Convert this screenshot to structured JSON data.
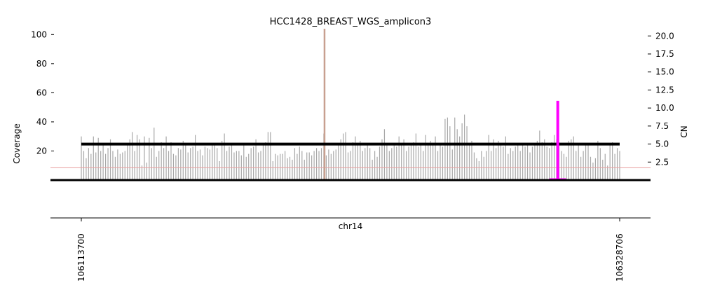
{
  "chart_data": {
    "type": "bar",
    "title": "HCC1428_BREAST_WGS_amplicon3",
    "ylabel": "Coverage",
    "y2label": "CN",
    "xlabel": "chr14",
    "ylim": [
      0,
      104
    ],
    "y2lim": [
      0,
      21.0
    ],
    "xlim": [
      106113700,
      106328706
    ],
    "y_ticks": [
      "20",
      "40",
      "60",
      "80",
      "100"
    ],
    "y2_ticks": [
      "2.5",
      "5.0",
      "7.5",
      "10.0",
      "12.5",
      "15.0",
      "17.5",
      "20.0"
    ],
    "x_ticks": [
      "106113700",
      "106328706"
    ],
    "colors": {
      "coverage": "#a8a8a8",
      "segment": "#000000",
      "baseline": "#e8a0a0",
      "spike": "#c8a090",
      "highlight": "#ff00ff"
    },
    "coverage": [
      30,
      20,
      15,
      22,
      18,
      30,
      19,
      29,
      20,
      24,
      18,
      22,
      28,
      20,
      16,
      21,
      18,
      19,
      20,
      25,
      28,
      33,
      20,
      31,
      28,
      10,
      30,
      12,
      29,
      22,
      36,
      16,
      20,
      26,
      22,
      30,
      20,
      26,
      18,
      17,
      22,
      21,
      27,
      25,
      19,
      22,
      23,
      31,
      20,
      21,
      17,
      23,
      22,
      21,
      25,
      24,
      22,
      13,
      27,
      32,
      20,
      23,
      25,
      19,
      20,
      20,
      17,
      25,
      16,
      18,
      22,
      23,
      28,
      19,
      20,
      25,
      26,
      33,
      33,
      13,
      18,
      17,
      18,
      18,
      20,
      15,
      16,
      14,
      22,
      18,
      23,
      20,
      14,
      19,
      19,
      17,
      20,
      22,
      20,
      22,
      32,
      17,
      21,
      18,
      20,
      21,
      24,
      28,
      32,
      33,
      19,
      20,
      26,
      30,
      24,
      27,
      20,
      22,
      24,
      22,
      14,
      20,
      16,
      23,
      28,
      35,
      24,
      20,
      22,
      25,
      23,
      30,
      24,
      28,
      20,
      23,
      25,
      26,
      32,
      23,
      25,
      20,
      31,
      24,
      27,
      24,
      30,
      20,
      24,
      23,
      42,
      43,
      37,
      21,
      43,
      35,
      30,
      39,
      45,
      37,
      24,
      27,
      19,
      15,
      13,
      20,
      16,
      20,
      31,
      20,
      28,
      22,
      27,
      25,
      23,
      30,
      18,
      22,
      20,
      23,
      24,
      20,
      25,
      23,
      24,
      19,
      23,
      24,
      27,
      34,
      26,
      28,
      23,
      22,
      26,
      31,
      28,
      26,
      20,
      18,
      16,
      27,
      28,
      30,
      20,
      25,
      16,
      20,
      24,
      25,
      16,
      12,
      15,
      27,
      22,
      14,
      18,
      10,
      24,
      26,
      18,
      22,
      20
    ],
    "spike": {
      "index": 100,
      "value": 104
    },
    "cn_segment": {
      "value": 5.0
    },
    "cn_highlight": {
      "value": 11.0,
      "position": 0.885
    },
    "baseline_coverage": 8.5
  }
}
